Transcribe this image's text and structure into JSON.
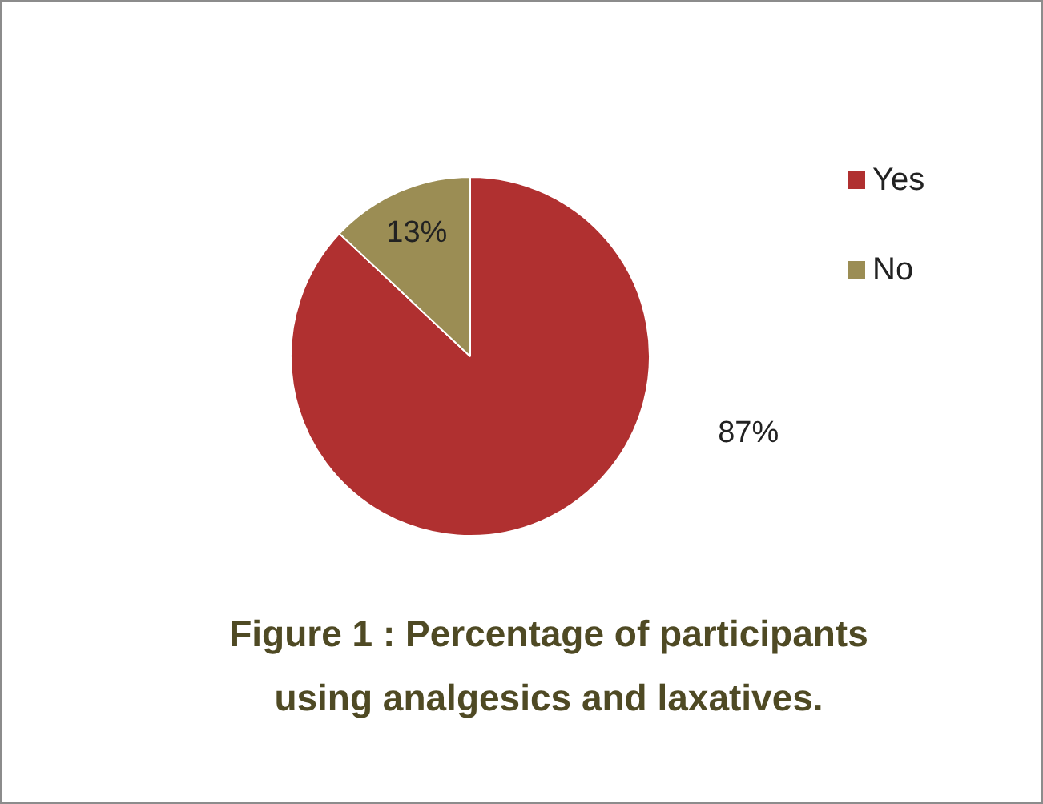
{
  "chart_data": {
    "type": "pie",
    "title": "Figure 1 : Percentage of participants using analgesics and laxatives.",
    "categories": [
      "Yes",
      "No"
    ],
    "values": [
      87,
      13
    ],
    "colors": [
      "#b03030",
      "#9b8d54"
    ],
    "value_labels": [
      "87%",
      "13%"
    ],
    "legend": "right"
  }
}
